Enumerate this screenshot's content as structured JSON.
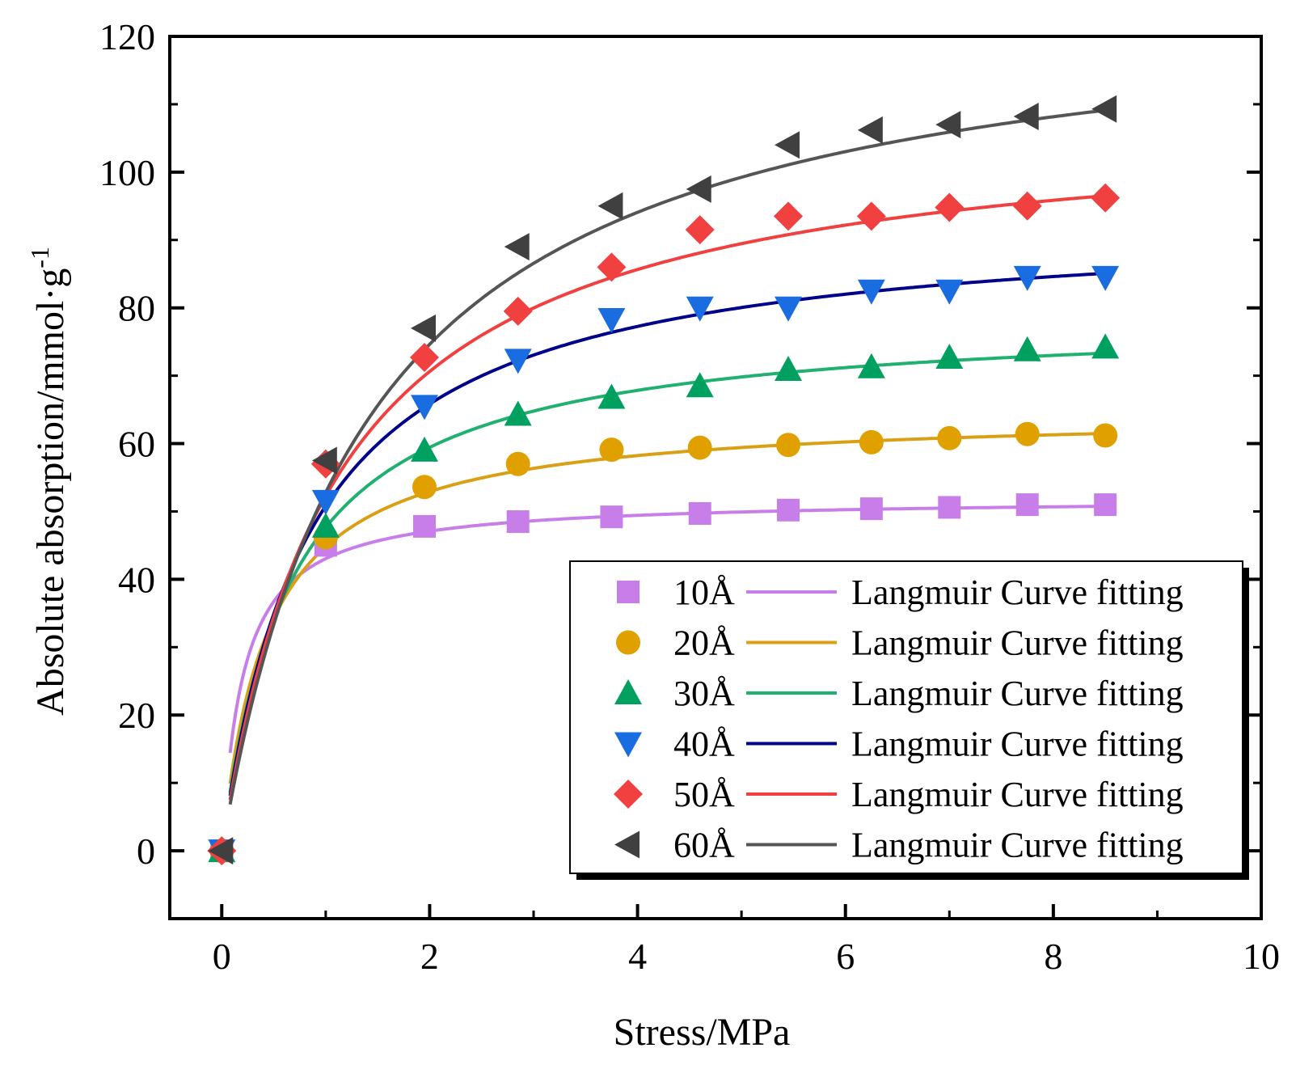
{
  "chart_data": {
    "type": "scatter",
    "title": "",
    "xlabel": "Stress/MPa",
    "ylabel": {
      "base": "Absolute absorption/mmol·g",
      "superscript": "-1"
    },
    "xlim": [
      -0.5,
      10
    ],
    "ylim": [
      -10,
      120
    ],
    "xticks": [
      0,
      2,
      4,
      6,
      8,
      10
    ],
    "yticks": [
      0,
      20,
      40,
      60,
      80,
      100,
      120
    ],
    "grid": false,
    "legend_position": "bottom-right",
    "x": [
      0,
      1.0,
      1.95,
      2.85,
      3.75,
      4.6,
      5.45,
      6.25,
      7.0,
      7.75,
      8.5
    ],
    "series": [
      {
        "name": "10Å",
        "fit_label": "Langmuir Curve fitting",
        "color": "#c77ee8",
        "fit_color": "#c77ee8",
        "marker": "square",
        "values": [
          0,
          45.0,
          47.8,
          48.5,
          49.2,
          49.7,
          50.2,
          50.4,
          50.6,
          51.0,
          51.0
        ],
        "fit": {
          "qmax": 52.0,
          "b": 4.8
        }
      },
      {
        "name": "20Å",
        "fit_label": "Langmuir Curve fitting",
        "color": "#e0a000",
        "fit_color": "#d9a015",
        "marker": "circle",
        "values": [
          0,
          46.2,
          53.6,
          57.0,
          59.1,
          59.4,
          59.8,
          60.2,
          60.8,
          61.4,
          61.2
        ],
        "fit": {
          "qmax": 64.7,
          "b": 2.25
        }
      },
      {
        "name": "30Å",
        "fit_label": "Langmuir Curve fitting",
        "color": "#00a060",
        "fit_color": "#20b070",
        "marker": "triangle-up",
        "values": [
          0,
          47.8,
          59.0,
          64.3,
          66.8,
          68.5,
          70.9,
          71.3,
          72.7,
          73.8,
          74.2
        ],
        "fit": {
          "qmax": 79.0,
          "b": 1.52
        }
      },
      {
        "name": "40Å",
        "fit_label": "Langmuir Curve fitting",
        "color": "#1a6de0",
        "fit_color": "#00008b",
        "marker": "triangle-down",
        "values": [
          0,
          51.5,
          65.5,
          72.3,
          78.3,
          80.0,
          80.0,
          82.5,
          82.5,
          84.5,
          84.5
        ],
        "fit": {
          "qmax": 93.5,
          "b": 1.19
        }
      },
      {
        "name": "50Å",
        "fit_label": "Langmuir Curve fitting",
        "color": "#f04040",
        "fit_color": "#f04040",
        "marker": "diamond",
        "values": [
          0,
          57.0,
          72.7,
          79.5,
          86.0,
          91.5,
          93.5,
          93.5,
          94.8,
          95.0,
          96.2
        ],
        "fit": {
          "qmax": 108.8,
          "b": 0.925
        }
      },
      {
        "name": "60Å",
        "fit_label": "Langmuir Curve fitting",
        "color": "#404040",
        "fit_color": "#555555",
        "marker": "triangle-left",
        "values": [
          0,
          57.5,
          77.0,
          89.0,
          95.0,
          97.5,
          104.0,
          106.2,
          107.0,
          108.2,
          109.3
        ],
        "fit": {
          "qmax": 127.2,
          "b": 0.71
        }
      }
    ]
  }
}
